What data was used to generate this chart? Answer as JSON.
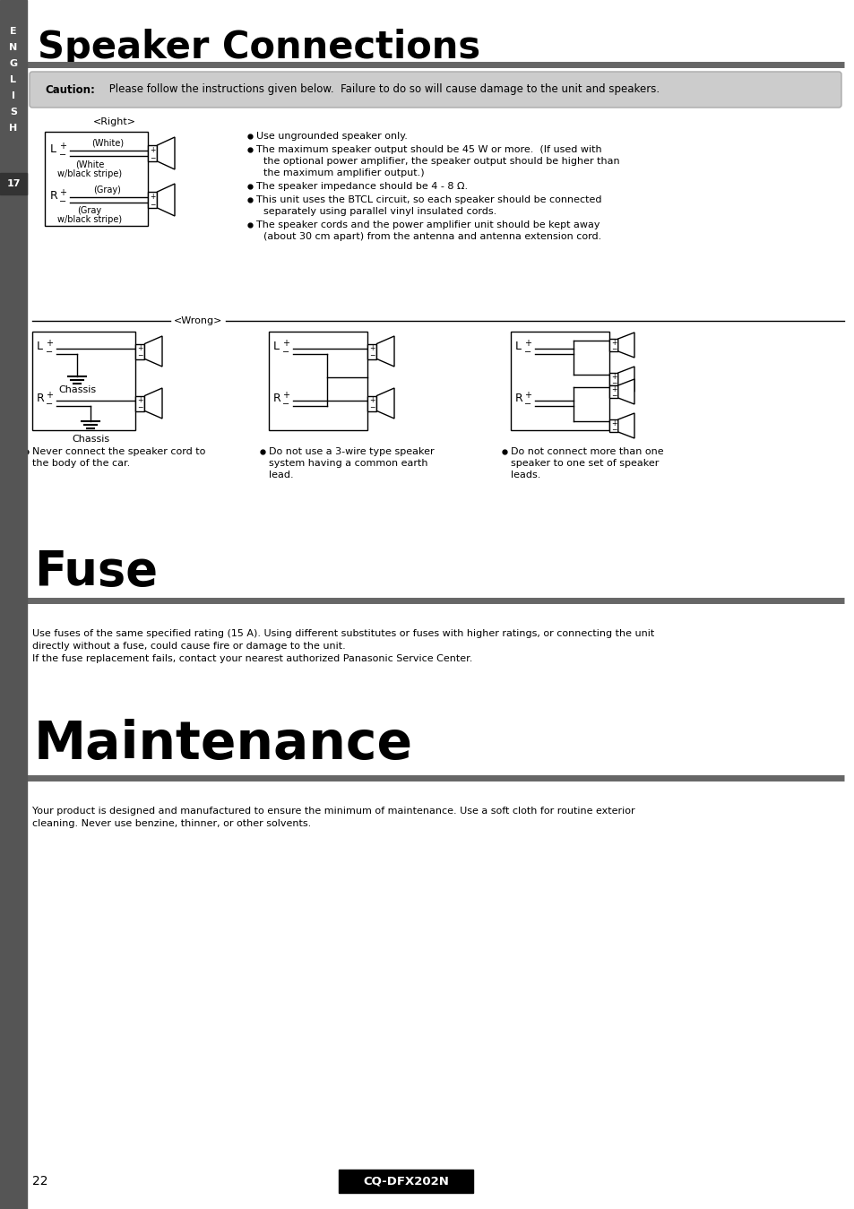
{
  "title": "Speaker Connections",
  "fuse_title": "Fuse",
  "maintenance_title": "Maintenance",
  "sidebar_letters": [
    "E",
    "N",
    "G",
    "L",
    "I",
    "S",
    "H"
  ],
  "sidebar_number": "17",
  "page_number": "22",
  "model": "CQ-DFX202N",
  "caution_bold": "Caution:",
  "caution_rest": " Please follow the instructions given below.  Failure to do so will cause damage to the unit and speakers.",
  "right_label": "<Right>",
  "wrong_label": "<Wrong>",
  "bullets": [
    "Use ungrounded speaker only.",
    "The maximum speaker output should be 45 W or more.  (If used with the optional power amplifier, the speaker output should be higher than the maximum amplifier output.)",
    "The speaker impedance should be 4 - 8 Ω.",
    "This unit uses the BTCL circuit, so each speaker should be connected separately using parallel vinyl insulated cords.",
    "The speaker cords and the power amplifier unit should be kept away (about 30 cm apart) from the antenna and antenna extension cord."
  ],
  "wrong_captions": [
    [
      "Never connect the speaker cord to",
      "the body of the car."
    ],
    [
      "Do not use a 3-wire type speaker",
      "system having a common earth",
      "lead."
    ],
    [
      "Do not connect more than one",
      "speaker to one set of speaker",
      "leads."
    ]
  ],
  "fuse_text_lines": [
    "Use fuses of the same specified rating (15 A). Using different substitutes or fuses with higher ratings, or connecting the unit",
    "directly without a fuse, could cause fire or damage to the unit.",
    "If the fuse replacement fails, contact your nearest authorized Panasonic Service Center."
  ],
  "maint_text_lines": [
    "Your product is designed and manufactured to ensure the minimum of maintenance. Use a soft cloth for routine exterior",
    "cleaning. Never use benzine, thinner, or other solvents."
  ]
}
